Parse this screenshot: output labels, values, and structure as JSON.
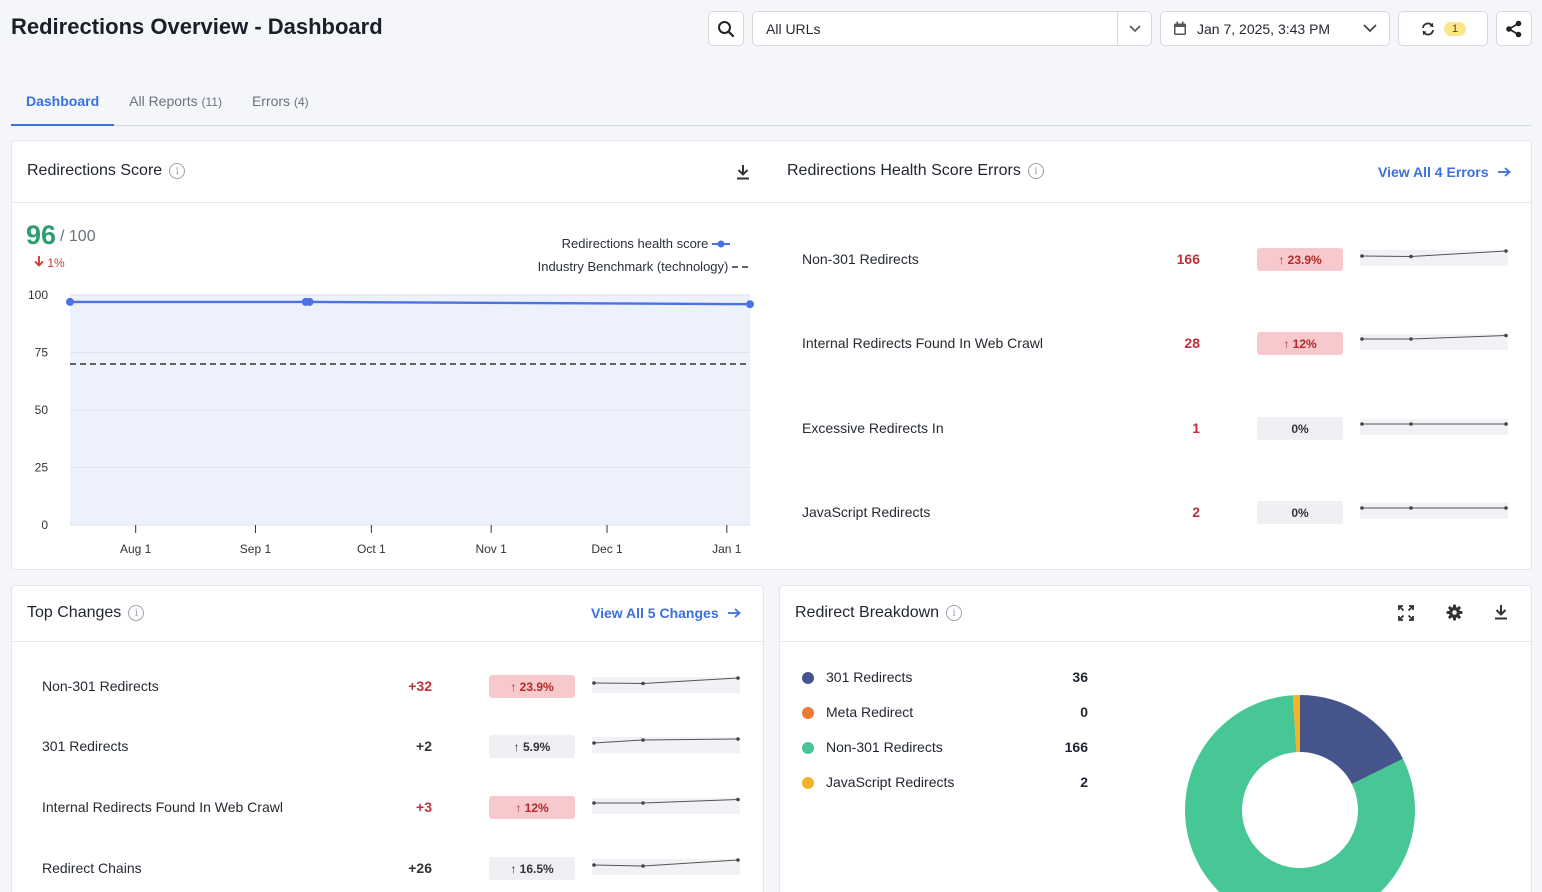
{
  "header": {
    "title": "Redirections Overview - Dashboard",
    "url_filter": "All URLs",
    "date": "Jan 7, 2025, 3:43 PM",
    "sync_count": "1"
  },
  "tabs": [
    {
      "label": "Dashboard",
      "count": ""
    },
    {
      "label": "All Reports",
      "count": "(11)"
    },
    {
      "label": "Errors",
      "count": "(4)"
    }
  ],
  "score_card": {
    "title": "Redirections Score",
    "score": "96",
    "out_of": "/ 100",
    "delta": "1%",
    "legend_health": "Redirections health score",
    "legend_benchmark": "Industry Benchmark (technology)"
  },
  "chart_data": {
    "type": "line",
    "x": [
      "Jul 15",
      "Sep 14",
      "Sep 15",
      "Jan 7"
    ],
    "series": [
      {
        "name": "Redirections health score",
        "values": [
          97,
          97,
          97,
          96
        ]
      },
      {
        "name": "Industry Benchmark (technology)",
        "values": [
          70,
          70,
          70,
          70
        ]
      }
    ],
    "x_ticks": [
      "Aug 1",
      "Sep 1",
      "Oct 1",
      "Nov 1",
      "Dec 1",
      "Jan 1"
    ],
    "y_ticks": [
      "100",
      "75",
      "50",
      "25",
      "0"
    ],
    "ylim": [
      0,
      100
    ],
    "grid": true,
    "legend": "top-right"
  },
  "health_errors": {
    "title": "Redirections Health Score Errors",
    "view_all": "View All 4 Errors",
    "rows": [
      {
        "label": "Non-301 Redirects",
        "value": "166",
        "change": "↑ 23.9%",
        "trend": "up",
        "spark": [
          0.4,
          0.35,
          0.9
        ]
      },
      {
        "label": "Internal Redirects Found In Web Crawl",
        "value": "28",
        "change": "↑ 12%",
        "trend": "up",
        "spark": [
          0.5,
          0.5,
          0.85
        ]
      },
      {
        "label": "Excessive Redirects In",
        "value": "1",
        "change": "0%",
        "trend": "flat",
        "spark": [
          0.5,
          0.5,
          0.5
        ]
      },
      {
        "label": "JavaScript Redirects",
        "value": "2",
        "change": "0%",
        "trend": "flat",
        "spark": [
          0.5,
          0.5,
          0.5
        ]
      }
    ]
  },
  "top_changes": {
    "title": "Top Changes",
    "view_all": "View All 5 Changes",
    "rows": [
      {
        "label": "Non-301 Redirects",
        "value": "+32",
        "change": "↑ 23.9%",
        "trend": "up",
        "spark": [
          0.4,
          0.35,
          0.9
        ]
      },
      {
        "label": "301 Redirects",
        "value": "+2",
        "change": "↑ 5.9%",
        "trend": "flat",
        "spark": [
          0.4,
          0.7,
          0.8
        ]
      },
      {
        "label": "Internal Redirects Found In Web Crawl",
        "value": "+3",
        "change": "↑ 12%",
        "trend": "up",
        "spark": [
          0.5,
          0.5,
          0.85
        ]
      },
      {
        "label": "Redirect Chains",
        "value": "+26",
        "change": "↑ 16.5%",
        "trend": "flat",
        "spark": [
          0.4,
          0.3,
          0.9
        ]
      }
    ]
  },
  "breakdown": {
    "title": "Redirect Breakdown",
    "items": [
      {
        "label": "301 Redirects",
        "value": "36",
        "color": "#46548c"
      },
      {
        "label": "Meta Redirect",
        "value": "0",
        "color": "#ee7a33"
      },
      {
        "label": "Non-301 Redirects",
        "value": "166",
        "color": "#48c796"
      },
      {
        "label": "JavaScript Redirects",
        "value": "2",
        "color": "#f3b42b"
      }
    ]
  }
}
